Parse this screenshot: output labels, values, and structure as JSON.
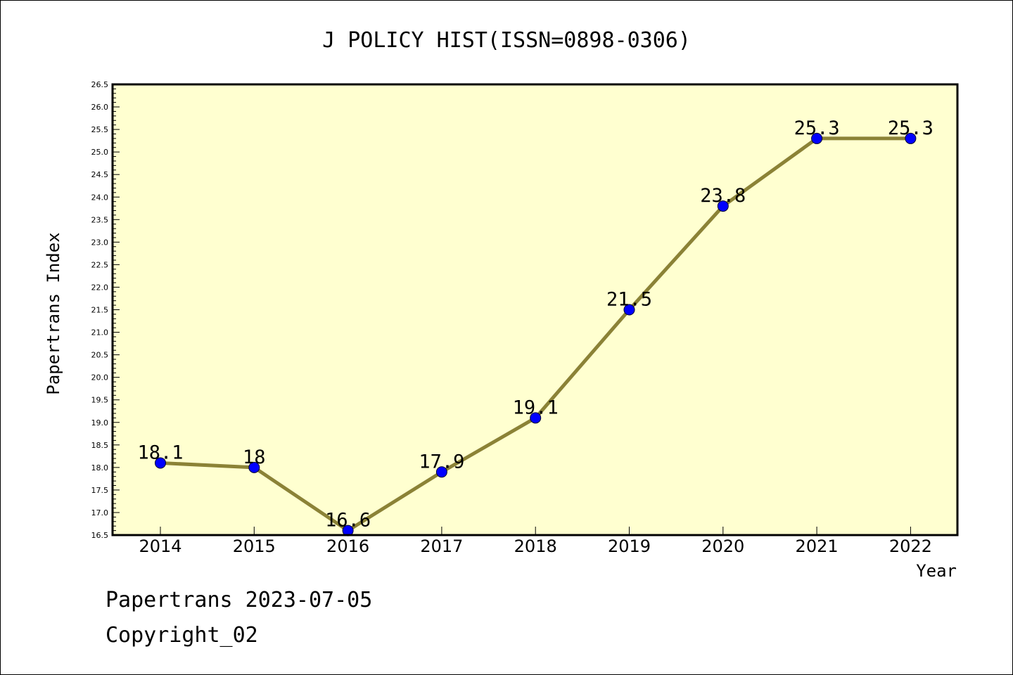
{
  "chart_data": {
    "type": "line",
    "title": "J POLICY HIST(ISSN=0898-0306)",
    "xlabel": "Year",
    "ylabel": "Papertrans Index",
    "categories": [
      "2014",
      "2015",
      "2016",
      "2017",
      "2018",
      "2019",
      "2020",
      "2021",
      "2022"
    ],
    "series": [
      {
        "values": [
          18.1,
          18.0,
          16.6,
          17.9,
          19.1,
          21.5,
          23.8,
          25.3,
          25.3
        ]
      }
    ],
    "data_labels": [
      "18.1",
      "18",
      "16.6",
      "17.9",
      "19.1",
      "21.5",
      "23.8",
      "25.3",
      "25.3"
    ],
    "ylim": [
      16.5,
      26.5
    ],
    "yticks": [
      "16.5",
      "17.0",
      "17.5",
      "18.0",
      "18.5",
      "19.0",
      "19.5",
      "20.0",
      "20.5",
      "21.0",
      "21.5",
      "22.0",
      "22.5",
      "23.0",
      "23.5",
      "24.0",
      "24.5",
      "25.0",
      "25.5",
      "26.0",
      "26.5"
    ],
    "grid": false,
    "colors": {
      "plot_background": "#ffffd0",
      "line": "#8b8236",
      "marker": "#0000ff"
    }
  },
  "footer": {
    "line1": "Papertrans 2023-07-05",
    "line2": "Copyright_02"
  }
}
